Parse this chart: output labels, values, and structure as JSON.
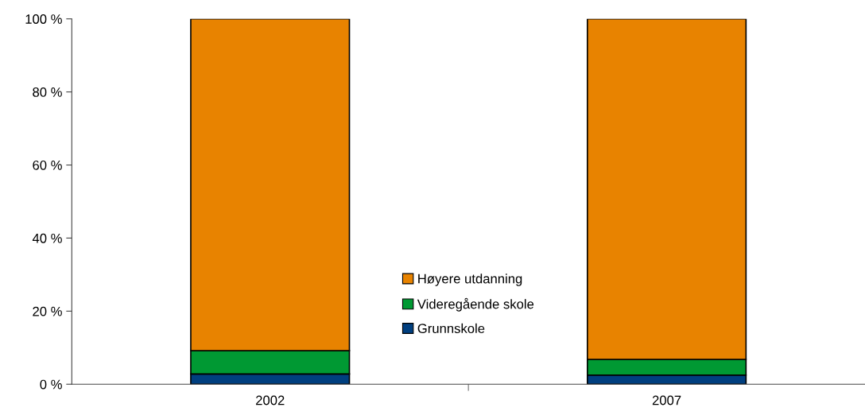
{
  "chart_data": {
    "type": "bar",
    "stacked": true,
    "categories": [
      "2002",
      "2007"
    ],
    "series": [
      {
        "name": "Grunnskole",
        "color": "#003f7f",
        "values": [
          2.8,
          2.5
        ]
      },
      {
        "name": "Videregående skole",
        "color": "#009933",
        "values": [
          6.4,
          4.3
        ]
      },
      {
        "name": "Høyere utdanning",
        "color": "#e88300",
        "values": [
          90.8,
          93.2
        ]
      }
    ],
    "ylim": [
      0,
      100
    ],
    "yticks": [
      {
        "value": 0,
        "label": "0 %"
      },
      {
        "value": 20,
        "label": "20 %"
      },
      {
        "value": 40,
        "label": "40 %"
      },
      {
        "value": 60,
        "label": "60 %"
      },
      {
        "value": 80,
        "label": "80 %"
      },
      {
        "value": 100,
        "label": "100 %"
      }
    ],
    "grid": false,
    "legend": "bottom"
  }
}
